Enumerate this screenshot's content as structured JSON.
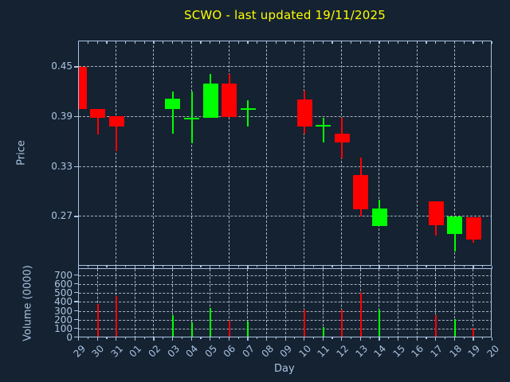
{
  "title": "SCWO - last updated 19/11/2025",
  "colors": {
    "background": "#152231",
    "axis": "#a9c3e2",
    "grid": "#cdd6df",
    "title": "#ffff00",
    "up": "#00ff00",
    "down": "#ff0000"
  },
  "chart_data": {
    "type": "candlestick",
    "title": "SCWO - last updated 19/11/2025",
    "xlabel": "Day",
    "x_ticklabels": [
      "29",
      "30",
      "31",
      "01",
      "02",
      "03",
      "04",
      "05",
      "06",
      "07",
      "08",
      "09",
      "10",
      "11",
      "12",
      "13",
      "14",
      "15",
      "16",
      "17",
      "18",
      "19",
      "20"
    ],
    "grid": true,
    "price_panel": {
      "ylabel": "Price",
      "yticks": [
        "0.45",
        "0.39",
        "0.33",
        "0.27"
      ],
      "ylim": [
        0.21,
        0.481
      ],
      "vgrid_every_days": 2,
      "ohlc": [
        {
          "day": "29",
          "open": 0.45,
          "high": 0.45,
          "low": 0.4,
          "close": 0.4,
          "direction": "down"
        },
        {
          "day": "30",
          "open": 0.4,
          "high": 0.4,
          "low": 0.369,
          "close": 0.389,
          "direction": "down"
        },
        {
          "day": "31",
          "open": 0.391,
          "high": 0.391,
          "low": 0.349,
          "close": 0.379,
          "direction": "down"
        },
        {
          "day": "03",
          "open": 0.4,
          "high": 0.421,
          "low": 0.37,
          "close": 0.412,
          "direction": "up"
        },
        {
          "day": "04",
          "open": 0.389,
          "high": 0.421,
          "low": 0.358,
          "close": 0.389,
          "direction": "up"
        },
        {
          "day": "05",
          "open": 0.389,
          "high": 0.442,
          "low": 0.389,
          "close": 0.43,
          "direction": "up"
        },
        {
          "day": "06",
          "open": 0.43,
          "high": 0.442,
          "low": 0.39,
          "close": 0.39,
          "direction": "down"
        },
        {
          "day": "07",
          "open": 0.401,
          "high": 0.41,
          "low": 0.379,
          "close": 0.401,
          "direction": "up"
        },
        {
          "day": "10",
          "open": 0.411,
          "high": 0.422,
          "low": 0.37,
          "close": 0.379,
          "direction": "down"
        },
        {
          "day": "11",
          "open": 0.38,
          "high": 0.389,
          "low": 0.359,
          "close": 0.38,
          "direction": "up"
        },
        {
          "day": "12",
          "open": 0.37,
          "high": 0.389,
          "low": 0.34,
          "close": 0.359,
          "direction": "down"
        },
        {
          "day": "13",
          "open": 0.32,
          "high": 0.341,
          "low": 0.27,
          "close": 0.279,
          "direction": "down"
        },
        {
          "day": "14",
          "open": 0.259,
          "high": 0.29,
          "low": 0.259,
          "close": 0.28,
          "direction": "up"
        },
        {
          "day": "17",
          "open": 0.289,
          "high": 0.289,
          "low": 0.247,
          "close": 0.26,
          "direction": "down"
        },
        {
          "day": "18",
          "open": 0.249,
          "high": 0.27,
          "low": 0.228,
          "close": 0.27,
          "direction": "up"
        },
        {
          "day": "19",
          "open": 0.269,
          "high": 0.269,
          "low": 0.239,
          "close": 0.243,
          "direction": "down"
        }
      ]
    },
    "volume_panel": {
      "ylabel": "Volume (0000)",
      "yticks": [
        "700",
        "600",
        "500",
        "400",
        "300",
        "200",
        "100",
        "0"
      ],
      "ylim": [
        0,
        780
      ],
      "vgrid_every_days": 1,
      "bars": [
        {
          "day": "30",
          "value": 370,
          "direction": "down"
        },
        {
          "day": "31",
          "value": 455,
          "direction": "down"
        },
        {
          "day": "03",
          "value": 245,
          "direction": "up"
        },
        {
          "day": "04",
          "value": 160,
          "direction": "up"
        },
        {
          "day": "05",
          "value": 322,
          "direction": "up"
        },
        {
          "day": "06",
          "value": 180,
          "direction": "down"
        },
        {
          "day": "07",
          "value": 171,
          "direction": "up"
        },
        {
          "day": "10",
          "value": 308,
          "direction": "down"
        },
        {
          "day": "11",
          "value": 108,
          "direction": "up"
        },
        {
          "day": "12",
          "value": 302,
          "direction": "down"
        },
        {
          "day": "13",
          "value": 493,
          "direction": "down"
        },
        {
          "day": "14",
          "value": 308,
          "direction": "up"
        },
        {
          "day": "17",
          "value": 245,
          "direction": "down"
        },
        {
          "day": "18",
          "value": 199,
          "direction": "up"
        },
        {
          "day": "19",
          "value": 100,
          "direction": "down"
        }
      ]
    }
  }
}
